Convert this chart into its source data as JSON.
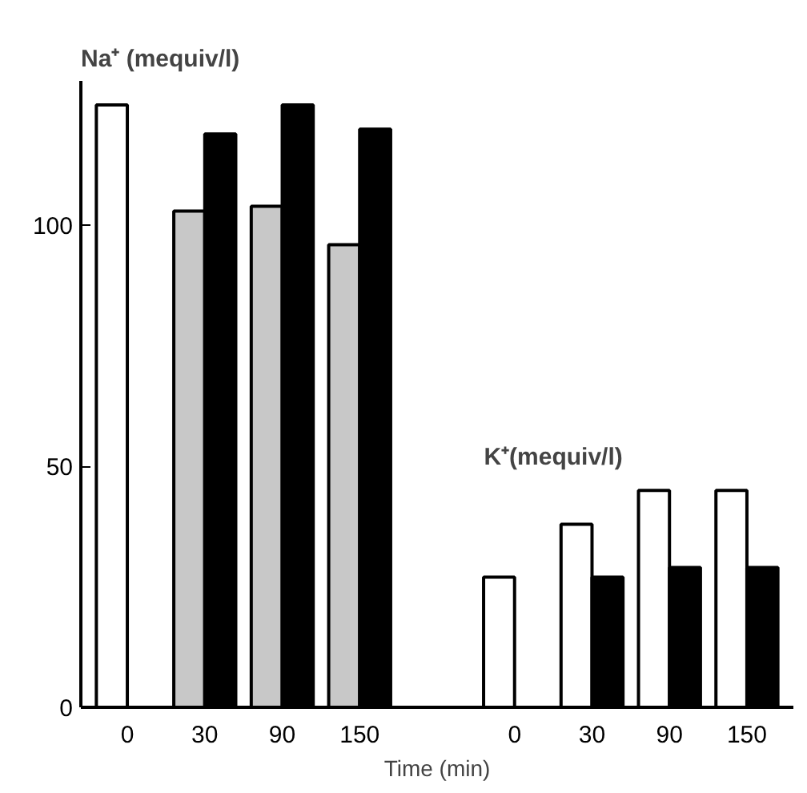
{
  "chart_data": {
    "type": "bar",
    "xlabel": "Time (min)",
    "categories": [
      "0",
      "30",
      "90",
      "150",
      null,
      "0",
      "30",
      "90",
      "150"
    ],
    "series": [
      {
        "colors": [
          "#ffffff",
          "#c8c8c8",
          "#c8c8c8",
          "#c8c8c8",
          null,
          "#ffffff",
          "#ffffff",
          "#ffffff",
          "#ffffff"
        ],
        "values": [
          125,
          103,
          104,
          96,
          null,
          27,
          38,
          45,
          45
        ]
      },
      {
        "color": "#000000",
        "values": [
          null,
          119,
          125,
          120,
          null,
          null,
          27,
          29,
          29
        ]
      }
    ],
    "annotations": [
      "Na⁺ (mequiv/l)",
      "K⁺(mequiv/l)"
    ],
    "ylim": [
      0,
      130
    ],
    "yticks": [
      0,
      50,
      100
    ],
    "grid": false
  }
}
